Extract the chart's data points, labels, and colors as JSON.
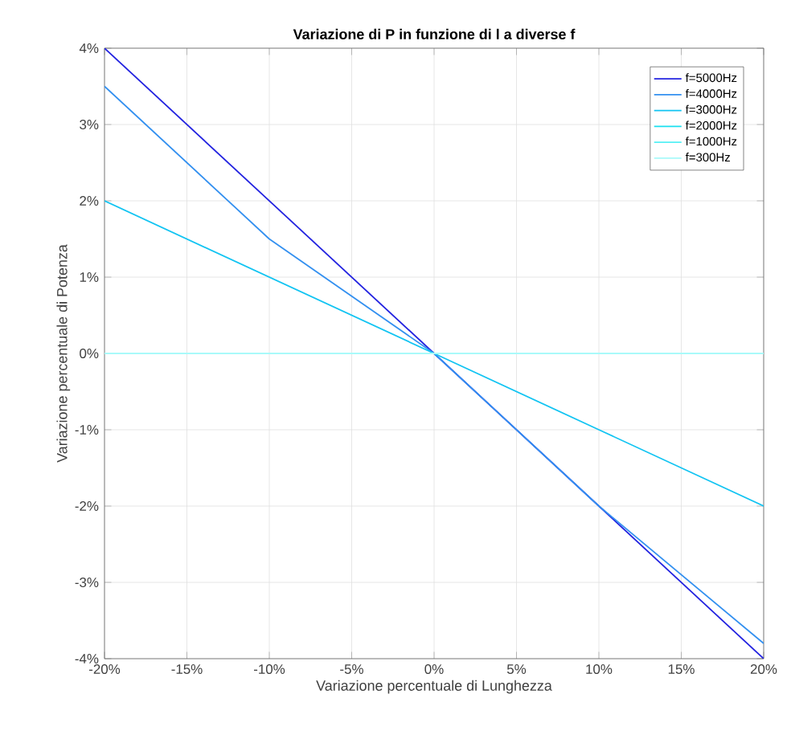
{
  "chart_data": {
    "type": "line",
    "title": "Variazione di P in funzione di l a diverse f",
    "xlabel": "Variazione percentuale di Lunghezza",
    "ylabel": "Variazione percentuale di Potenza",
    "x": [
      -20,
      -10,
      0,
      10,
      20
    ],
    "series": [
      {
        "name": "f=5000Hz",
        "color": "#2424e0",
        "values": [
          4,
          2,
          0,
          -2,
          -4
        ]
      },
      {
        "name": "f=4000Hz",
        "color": "#3390f0",
        "values": [
          3.5,
          1.5,
          0,
          -2,
          -3.8
        ]
      },
      {
        "name": "f=3000Hz",
        "color": "#12c4f2",
        "values": [
          2,
          1,
          0,
          -1,
          -2
        ]
      },
      {
        "name": "f=2000Hz",
        "color": "#1ae0f0",
        "values": [
          null,
          null,
          null,
          null,
          null
        ]
      },
      {
        "name": "f=1000Hz",
        "color": "#55f0f5",
        "values": [
          null,
          null,
          null,
          null,
          null
        ]
      },
      {
        "name": "f=300Hz",
        "color": "#a8fafa",
        "values": [
          0,
          0,
          0,
          0,
          0
        ]
      }
    ],
    "xlim": [
      -20,
      20
    ],
    "ylim": [
      -4,
      4
    ],
    "xticks": [
      {
        "value": -20,
        "label": "-20%"
      },
      {
        "value": -15,
        "label": "-15%"
      },
      {
        "value": -10,
        "label": "-10%"
      },
      {
        "value": -5,
        "label": "-5%"
      },
      {
        "value": 0,
        "label": "0%"
      },
      {
        "value": 5,
        "label": "5%"
      },
      {
        "value": 10,
        "label": "10%"
      },
      {
        "value": 15,
        "label": "15%"
      },
      {
        "value": 20,
        "label": "20%"
      }
    ],
    "yticks": [
      {
        "value": -4,
        "label": "-4%"
      },
      {
        "value": -3,
        "label": "-3%"
      },
      {
        "value": -2,
        "label": "-2%"
      },
      {
        "value": -1,
        "label": "-1%"
      },
      {
        "value": 0,
        "label": "0%"
      },
      {
        "value": 1,
        "label": "1%"
      },
      {
        "value": 2,
        "label": "2%"
      },
      {
        "value": 3,
        "label": "3%"
      },
      {
        "value": 4,
        "label": "4%"
      }
    ],
    "grid": true,
    "legend": "top right",
    "marker": "none",
    "line_style": "solid"
  }
}
